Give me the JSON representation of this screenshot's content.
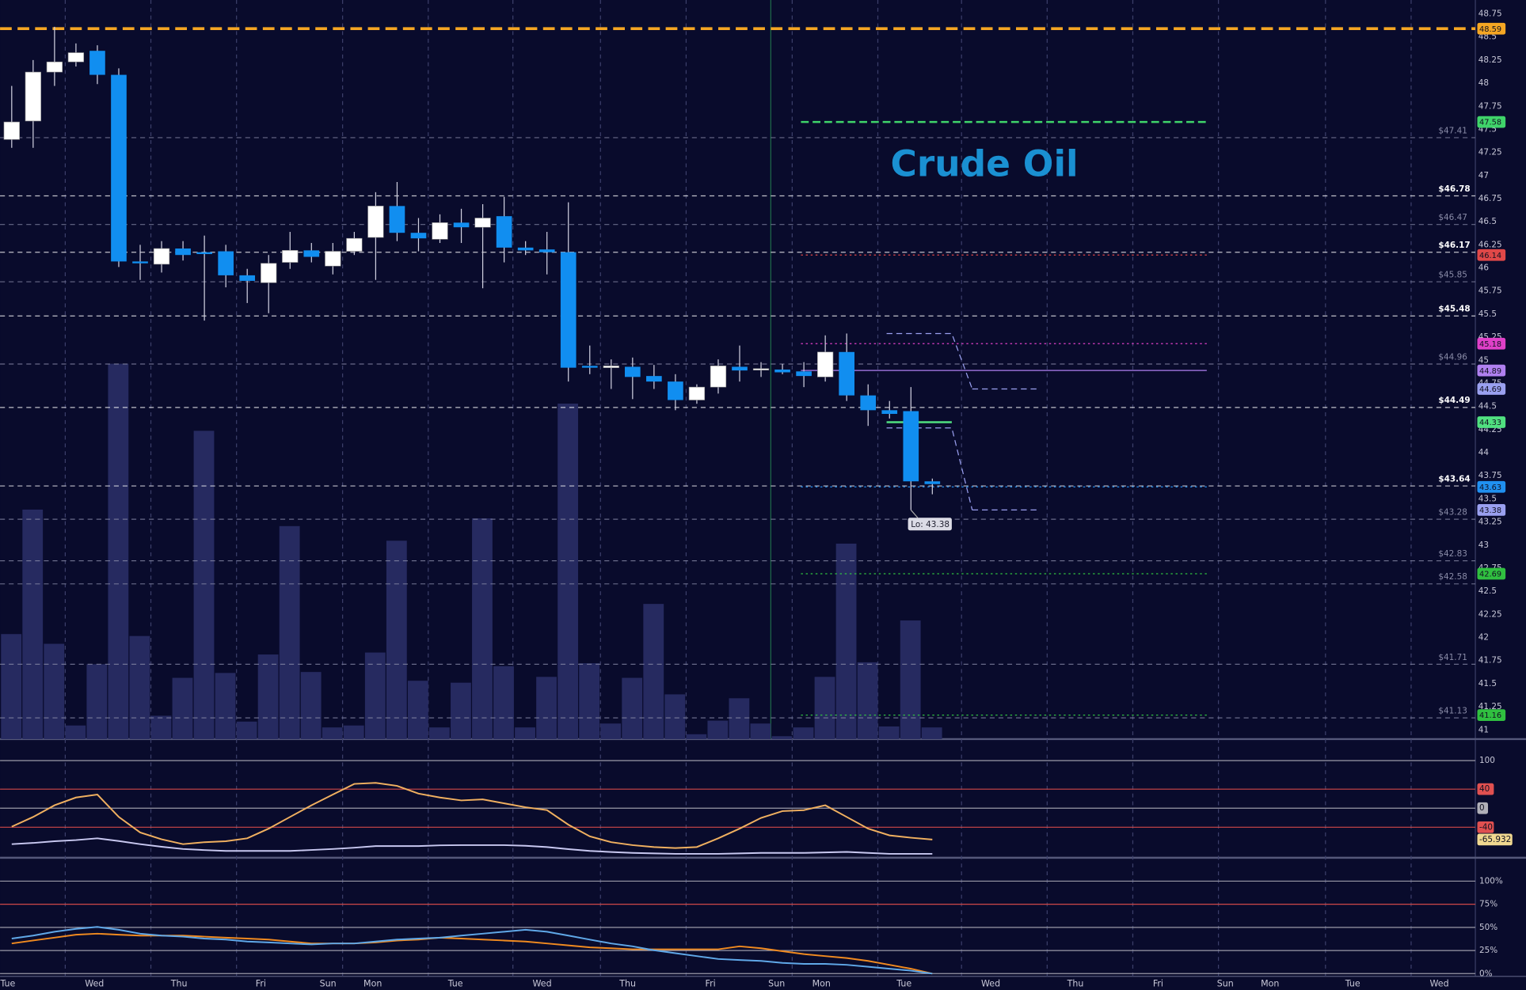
{
  "chart_data": [
    {
      "type": "candlestick",
      "title": "Crude Oil",
      "annotation": "Lo: 43.38",
      "ylim": [
        40.9,
        48.9
      ],
      "yticks": [
        41,
        41.25,
        41.5,
        41.75,
        42,
        42.25,
        42.5,
        42.75,
        43,
        43.25,
        43.5,
        43.75,
        44,
        44.25,
        44.5,
        44.75,
        45,
        45.25,
        45.5,
        45.75,
        46,
        46.25,
        46.5,
        46.75,
        47,
        47.25,
        47.5,
        47.75,
        48,
        48.25,
        48.5,
        48.75
      ],
      "up_color": "#ffffff",
      "down_color": "#118ef0",
      "volume_color": "#262a60",
      "open": [
        47.39,
        47.59,
        48.12,
        48.23,
        48.35,
        48.09,
        46.07,
        46.04,
        46.21,
        46.17,
        46.18,
        45.92,
        45.84,
        46.06,
        46.19,
        46.02,
        46.18,
        46.33,
        46.67,
        46.38,
        46.31,
        46.49,
        46.44,
        46.56,
        46.22,
        46.2,
        46.17,
        44.94,
        44.92,
        44.93,
        44.83,
        44.77,
        44.57,
        44.71,
        44.93,
        44.9,
        44.9,
        44.88,
        44.82,
        45.09,
        44.62,
        44.46,
        44.45,
        43.69
      ],
      "high": [
        47.97,
        48.25,
        48.61,
        48.43,
        48.41,
        48.16,
        46.25,
        46.29,
        46.29,
        46.35,
        46.25,
        45.99,
        46.14,
        46.39,
        46.27,
        46.27,
        46.39,
        46.82,
        46.93,
        46.54,
        46.58,
        46.64,
        46.69,
        46.77,
        46.29,
        46.39,
        46.71,
        45.16,
        45.01,
        45.03,
        44.95,
        44.85,
        44.74,
        45.01,
        45.16,
        44.98,
        44.96,
        44.98,
        45.27,
        45.29,
        44.74,
        44.56,
        44.71,
        43.72
      ],
      "low": [
        47.3,
        47.3,
        47.97,
        48.18,
        47.99,
        46.01,
        45.87,
        45.95,
        46.08,
        45.43,
        45.79,
        45.62,
        45.51,
        45.99,
        46.06,
        45.93,
        46.14,
        45.87,
        46.29,
        46.18,
        46.27,
        46.27,
        45.78,
        46.06,
        46.14,
        45.93,
        44.77,
        44.85,
        44.69,
        44.58,
        44.69,
        44.46,
        44.53,
        44.64,
        44.77,
        44.82,
        44.85,
        44.71,
        44.77,
        44.56,
        44.29,
        44.37,
        43.38,
        43.55
      ],
      "close": [
        47.58,
        48.12,
        48.23,
        48.33,
        48.09,
        46.07,
        46.05,
        46.21,
        46.14,
        46.15,
        45.92,
        45.86,
        46.05,
        46.19,
        46.12,
        46.18,
        46.32,
        46.67,
        46.38,
        46.32,
        46.49,
        46.44,
        46.54,
        46.22,
        46.19,
        46.17,
        44.92,
        44.92,
        44.94,
        44.82,
        44.77,
        44.57,
        44.71,
        44.94,
        44.89,
        44.91,
        44.87,
        44.83,
        45.09,
        44.62,
        44.46,
        44.42,
        43.69,
        43.66
      ],
      "volume_ylim": [
        0,
        400
      ],
      "volume": [
        108,
        236,
        98,
        14,
        77,
        386,
        106,
        24,
        63,
        317,
        68,
        18,
        87,
        219,
        69,
        12,
        14,
        89,
        204,
        60,
        12,
        58,
        227,
        75,
        12,
        64,
        345,
        78,
        16,
        63,
        139,
        46,
        5,
        19,
        42,
        16,
        3,
        12,
        64,
        201,
        79,
        13,
        122,
        12
      ],
      "levels": [
        {
          "value": 47.41,
          "label": "$47.41",
          "color": "#8a8ca8"
        },
        {
          "value": 46.78,
          "label": "$46.78",
          "color": "#ffffff"
        },
        {
          "value": 46.47,
          "label": "$46.47",
          "color": "#8a8ca8"
        },
        {
          "value": 46.17,
          "label": "$46.17",
          "color": "#ffffff"
        },
        {
          "value": 45.85,
          "label": "$45.85",
          "color": "#8a8ca8"
        },
        {
          "value": 45.48,
          "label": "$45.48",
          "color": "#ffffff"
        },
        {
          "value": 44.96,
          "label": "$44.96",
          "color": "#8a8ca8"
        },
        {
          "value": 44.49,
          "label": "$44.49",
          "color": "#ffffff"
        },
        {
          "value": 43.64,
          "label": "$43.64",
          "color": "#ffffff"
        },
        {
          "value": 43.28,
          "label": "$43.28",
          "color": "#8a8ca8"
        },
        {
          "value": 42.83,
          "label": "$42.83",
          "color": "#8a8ca8"
        },
        {
          "value": 42.58,
          "label": "$42.58",
          "color": "#8a8ca8"
        },
        {
          "value": 41.71,
          "label": "$41.71",
          "color": "#8a8ca8"
        },
        {
          "value": 41.13,
          "label": "$41.13",
          "color": "#8a8ca8"
        }
      ],
      "price_tags": [
        {
          "value": 48.59,
          "color": "#f5a623"
        },
        {
          "value": 47.58,
          "color": "#3fd46a"
        },
        {
          "value": 46.14,
          "color": "#e04848"
        },
        {
          "value": 45.18,
          "color": "#e040c8"
        },
        {
          "value": 44.89,
          "color": "#b080f0"
        },
        {
          "value": 44.69,
          "color": "#9aa0f0"
        },
        {
          "value": 44.33,
          "color": "#50e080"
        },
        {
          "value": 43.63,
          "color": "#2090f0"
        },
        {
          "value": 43.38,
          "color": "#9aa0f0"
        },
        {
          "value": 42.69,
          "color": "#30c040"
        },
        {
          "value": 41.16,
          "color": "#30c040"
        }
      ]
    },
    {
      "type": "line",
      "ylim": [
        -100,
        141
      ],
      "yticks": [
        100,
        40,
        0,
        -40
      ],
      "series": [
        {
          "color": "#f0b060",
          "values": [
            -38.8,
            -18.4,
            6.1,
            22.4,
            28.6,
            -18.4,
            -51,
            -65.3,
            -75.5,
            -71.4,
            -69.4,
            -63.3,
            -42.9,
            -18.4,
            6.1,
            28.6,
            51,
            53.1,
            46.9,
            30.6,
            22.4,
            16.3,
            18.4,
            10.2,
            2,
            -4.1,
            -34.7,
            -59.2,
            -71.4,
            -77.6,
            -81.6,
            -83.7,
            -81.6,
            -63.3,
            -42.9,
            -20.4,
            -6.1,
            -4.1,
            6.1,
            -18.4,
            -42.9,
            -57.1,
            -62,
            -65.932
          ]
        },
        {
          "color": "#c8c8f0",
          "values": [
            -75.5,
            -73,
            -69.4,
            -67,
            -63.3,
            -69,
            -75.5,
            -81,
            -85.7,
            -88,
            -89.8,
            -89.8,
            -89.8,
            -89.8,
            -87.8,
            -85.7,
            -83,
            -79.6,
            -79.6,
            -79.6,
            -78,
            -77.6,
            -77.6,
            -77.6,
            -79,
            -81.6,
            -86,
            -89.8,
            -92,
            -93.9,
            -95,
            -95.9,
            -95.9,
            -95.9,
            -95,
            -93.9,
            -93.9,
            -93.9,
            -92.9,
            -91.8,
            -93.9,
            -95.9,
            -95.9,
            -95.9
          ]
        }
      ]
    },
    {
      "type": "line",
      "ylim": [
        -3,
        119
      ],
      "yticks": [
        {
          "value": 100,
          "label": "100%"
        },
        {
          "value": 75,
          "label": "75%"
        },
        {
          "value": 50,
          "label": "50%"
        },
        {
          "value": 25,
          "label": "25%"
        },
        {
          "value": 0,
          "label": "0%"
        }
      ],
      "x_labels": [
        "Tue",
        "Wed",
        "Thu",
        "Fri",
        "Sun",
        "Mon",
        "Tue",
        "Wed",
        "Thu",
        "Fri",
        "Sun",
        "Mon",
        "Tue",
        "Wed",
        "Thu",
        "Fri",
        "Sun",
        "Mon",
        "Tue",
        "Wed"
      ],
      "series": [
        {
          "color": "#f08a20",
          "values": [
            32.6,
            35.8,
            38.9,
            42.1,
            43.2,
            42.1,
            41.1,
            41.1,
            41.1,
            40,
            38.9,
            37.9,
            36.8,
            34.7,
            32.6,
            32.6,
            32.6,
            33.7,
            35.8,
            36.8,
            38.9,
            37.9,
            36.8,
            35.8,
            34.7,
            32.6,
            30.5,
            28.4,
            27.4,
            26.3,
            26.3,
            26.3,
            26.3,
            26.3,
            29.5,
            27.4,
            24.2,
            21.1,
            18.9,
            16.8,
            13.7,
            9.5,
            5.3,
            0
          ]
        },
        {
          "color": "#60a8e8",
          "values": [
            37.9,
            41.1,
            45.3,
            48.4,
            50.5,
            47.4,
            43.2,
            41.1,
            40,
            37.9,
            36.8,
            34.7,
            33.7,
            32.6,
            31.6,
            32.6,
            32.6,
            34.7,
            36.8,
            37.9,
            38.9,
            41.1,
            43.2,
            45.3,
            47.4,
            45.3,
            41.1,
            36.8,
            32.6,
            29.5,
            25.3,
            22.1,
            18.9,
            15.8,
            14.7,
            13.7,
            11.6,
            10.5,
            10.5,
            9.5,
            7.4,
            5.3,
            3.2,
            0
          ]
        }
      ]
    }
  ]
}
